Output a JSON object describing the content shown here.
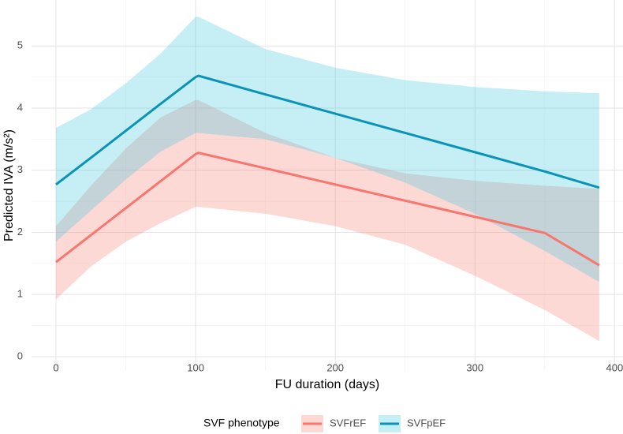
{
  "chart_data": {
    "type": "line",
    "x_label": "FU duration (days)",
    "y_label": "Predicted IVA (m/s²)",
    "legend_title": "SVF phenotype",
    "legend": "bottom",
    "grid": true,
    "x": [
      0,
      25,
      50,
      75,
      100,
      102,
      150,
      200,
      250,
      300,
      350,
      389
    ],
    "series": [
      {
        "name": "SVFrEF",
        "color": "#f8766d",
        "band_color": "#f8766d",
        "values": [
          1.52,
          1.955,
          2.39,
          2.825,
          3.26,
          3.28,
          3.03,
          2.77,
          2.51,
          2.25,
          1.99,
          1.47
        ],
        "lower": [
          0.92,
          1.45,
          1.85,
          2.15,
          2.41,
          2.41,
          2.3,
          2.1,
          1.8,
          1.3,
          0.75,
          0.25
        ],
        "upper": [
          2.1,
          2.75,
          3.35,
          3.85,
          4.13,
          4.13,
          3.6,
          3.2,
          2.95,
          2.83,
          2.75,
          2.7
        ]
      },
      {
        "name": "SVFpEF",
        "color": "#0a93b6",
        "band_color": "#33c4dc",
        "values": [
          2.77,
          3.2,
          3.635,
          4.07,
          4.5,
          4.52,
          4.22,
          3.91,
          3.6,
          3.29,
          2.98,
          2.72
        ],
        "lower": [
          1.85,
          2.35,
          2.85,
          3.3,
          3.6,
          3.6,
          3.5,
          3.2,
          2.8,
          2.3,
          1.7,
          1.2
        ],
        "upper": [
          3.68,
          3.98,
          4.4,
          4.88,
          5.47,
          5.47,
          4.95,
          4.65,
          4.45,
          4.34,
          4.27,
          4.24
        ]
      }
    ],
    "xlim": [
      -17.5,
      406
    ],
    "ylim": [
      -0.23,
      5.74
    ],
    "xticks": [
      0,
      100,
      200,
      300,
      400
    ],
    "yticks": [
      0,
      1,
      2,
      3,
      4,
      5
    ],
    "x_minor_ticks": [
      50,
      150,
      250,
      350
    ],
    "y_minor_ticks": [
      0.5,
      1.5,
      2.5,
      3.5,
      4.5
    ]
  }
}
